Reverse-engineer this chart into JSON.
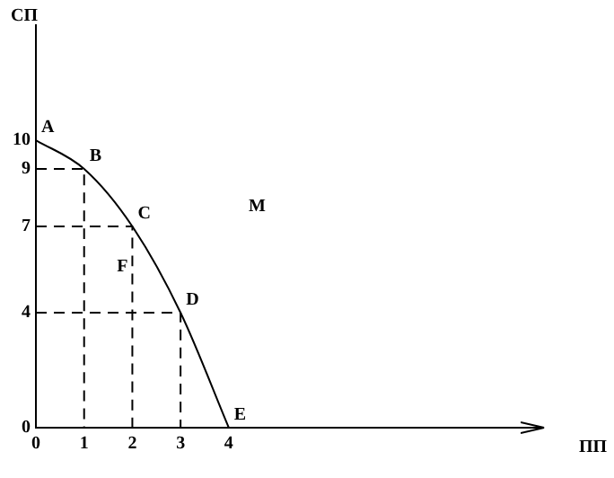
{
  "chart_data": {
    "type": "line",
    "xlabel": "ПП",
    "ylabel": "СП",
    "series": [
      {
        "color": "#000000",
        "x": [
          0,
          1,
          2,
          3,
          4
        ],
        "values": [
          10,
          9,
          7,
          4,
          0
        ],
        "line_style": "solid"
      },
      {
        "color": "#000000",
        "x": [
          0,
          1,
          1
        ],
        "values": [
          9,
          9,
          0
        ],
        "line_style": "dashed"
      },
      {
        "color": "#000000",
        "x": [
          0,
          2,
          2
        ],
        "values": [
          7,
          7,
          0
        ],
        "line_style": "dashed"
      },
      {
        "color": "#000000",
        "x": [
          0,
          3,
          3
        ],
        "values": [
          4,
          4,
          0
        ],
        "line_style": "dashed"
      }
    ],
    "annotations": [
      {
        "text": "A",
        "x": 0,
        "y": 10
      },
      {
        "text": "B",
        "x": 1,
        "y": 9
      },
      {
        "text": "C",
        "x": 2,
        "y": 7
      },
      {
        "text": "D",
        "x": 3,
        "y": 4
      },
      {
        "text": "E",
        "x": 4,
        "y": 0
      },
      "F",
      "M"
    ],
    "xlim": [
      0,
      10.5
    ],
    "xticks": [
      0,
      1,
      2,
      3,
      4
    ],
    "ylim": [
      0,
      14
    ],
    "yticks": [
      0,
      4,
      7,
      9,
      10
    ],
    "grid": false,
    "legend": false,
    "marker": "none"
  }
}
